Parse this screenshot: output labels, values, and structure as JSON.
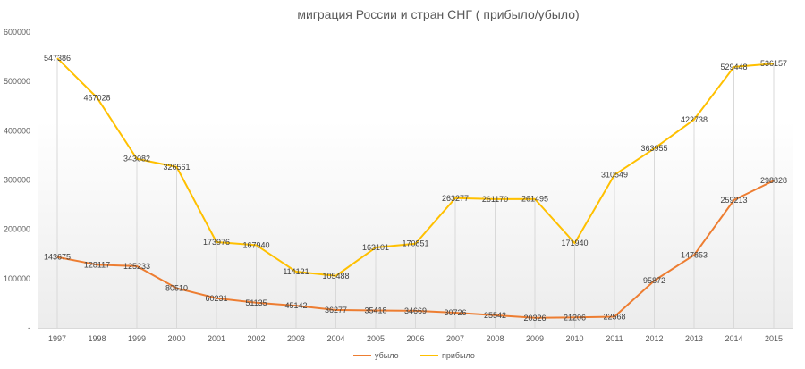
{
  "chart_data": {
    "type": "line",
    "title": "миграция России и стран СНГ ( прибыло/убыло)",
    "x": [
      "1997",
      "1998",
      "1999",
      "2000",
      "2001",
      "2002",
      "2003",
      "2004",
      "2005",
      "2006",
      "2007",
      "2008",
      "2009",
      "2010",
      "2011",
      "2012",
      "2013",
      "2014",
      "2015"
    ],
    "ylim": [
      0,
      600000
    ],
    "yticks": [
      0,
      100000,
      200000,
      300000,
      400000,
      500000,
      600000
    ],
    "ytick_labels": [
      "-",
      "100000",
      "200000",
      "300000",
      "400000",
      "500000",
      "600000"
    ],
    "grid": false,
    "drop_lines": true,
    "legend_position": "bottom",
    "series": [
      {
        "name": "убыло",
        "color": "#ED7D31",
        "values": [
          143675,
          128117,
          125233,
          80510,
          60231,
          51135,
          45142,
          36277,
          35418,
          34669,
          30726,
          25542,
          20326,
          21206,
          22568,
          95872,
          147853,
          259213,
          298828
        ]
      },
      {
        "name": "прибыло",
        "color": "#FFC000",
        "values": [
          547386,
          467028,
          343082,
          326561,
          173976,
          167940,
          114121,
          105488,
          163101,
          170851,
          263277,
          261170,
          261495,
          171940,
          310549,
          363955,
          422738,
          529448,
          536157
        ]
      }
    ]
  }
}
